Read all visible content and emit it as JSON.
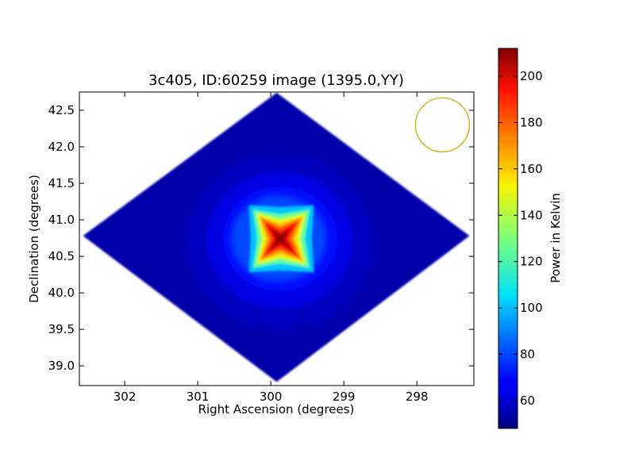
{
  "chart_data": {
    "type": "heatmap",
    "title": "3c405, ID:60259 image (1395.0,YY)",
    "xlabel": "Right Ascension (degrees)",
    "ylabel": "Declination (degrees)",
    "x_ticks": [
      302,
      301,
      300,
      299,
      298
    ],
    "y_ticks": [
      39.0,
      39.5,
      40.0,
      40.5,
      41.0,
      41.5,
      42.0,
      42.5
    ],
    "x_tick_labels": [
      "302",
      "301",
      "300",
      "299",
      "298"
    ],
    "y_tick_labels": [
      "39.0",
      "39.5",
      "40.0",
      "40.5",
      "41.0",
      "41.5",
      "42.0",
      "42.5"
    ],
    "xlim": [
      302.62,
      297.22
    ],
    "ylim": [
      38.73,
      42.75
    ],
    "x_inverted": true,
    "colormap": "jet",
    "colorbar": {
      "label": "Power in Kelvin",
      "range": [
        48,
        212
      ],
      "ticks": [
        60,
        80,
        100,
        120,
        140,
        160,
        180,
        200
      ],
      "tick_labels": [
        "60",
        "80",
        "100",
        "120",
        "140",
        "160",
        "180",
        "200"
      ]
    },
    "image_footprint": {
      "shape": "diamond",
      "center_ra": 299.91,
      "center_dec": 40.74,
      "vertices": [
        {
          "ra": 299.92,
          "dec": 42.74
        },
        {
          "ra": 297.28,
          "dec": 40.78
        },
        {
          "ra": 299.92,
          "dec": 38.78
        },
        {
          "ra": 302.57,
          "dec": 40.78
        }
      ],
      "background_kelvin": 55
    },
    "peak_source": {
      "ra": 299.87,
      "dec": 40.74,
      "peak_kelvin": 212,
      "shape": "four-point star (cross-shaped sidelobes)"
    },
    "grid": false,
    "beam_marker": {
      "shape": "circle",
      "color": "#c8b400",
      "center_ra": 297.65,
      "center_dec": 42.3,
      "radius_deg": 0.37
    }
  }
}
